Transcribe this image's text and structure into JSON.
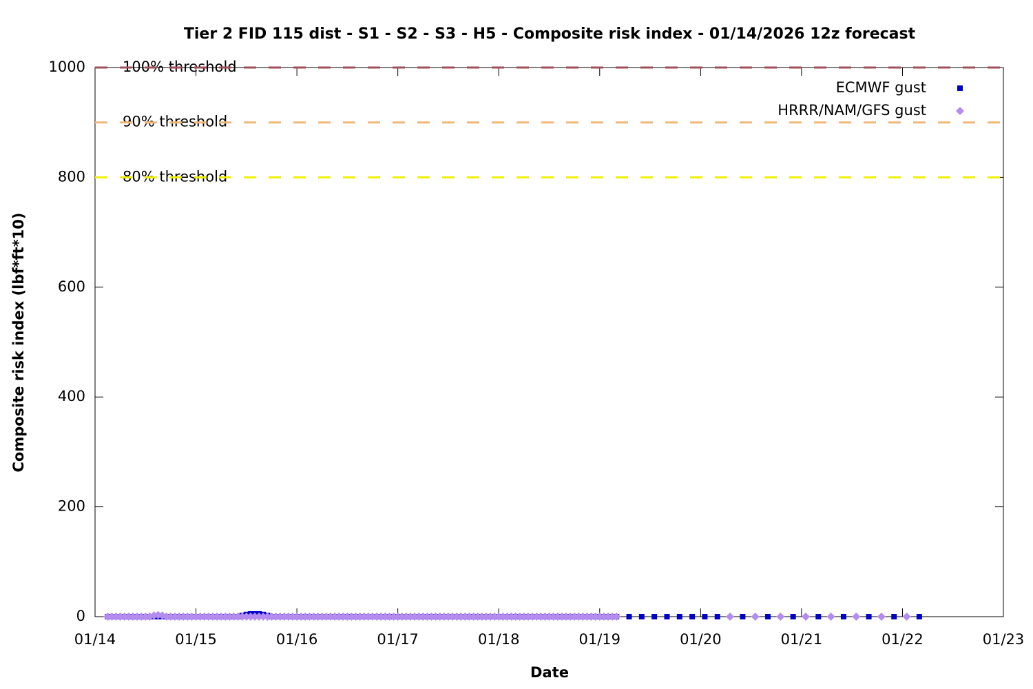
{
  "chart_data": {
    "type": "scatter",
    "title": "Tier 2 FID 115 dist - S1 - S2 - S3 - H5 - Composite risk index - 01/14/2026 12z forecast",
    "x_label": "Date",
    "y_label": "Composite risk index (lbf*ft*10)",
    "xlim": [
      0,
      216
    ],
    "xticks": [
      {
        "value": 0,
        "label": "01/14"
      },
      {
        "value": 24,
        "label": "01/15"
      },
      {
        "value": 48,
        "label": "01/16"
      },
      {
        "value": 72,
        "label": "01/17"
      },
      {
        "value": 96,
        "label": "01/18"
      },
      {
        "value": 120,
        "label": "01/19"
      },
      {
        "value": 144,
        "label": "01/20"
      },
      {
        "value": 168,
        "label": "01/21"
      },
      {
        "value": 192,
        "label": "01/22"
      },
      {
        "value": 216,
        "label": "01/23"
      }
    ],
    "ylim": [
      0,
      1000
    ],
    "yticks": [
      0,
      200,
      400,
      600,
      800,
      1000
    ],
    "legend": "top-right",
    "thresholds": [
      {
        "label": "100% threshold",
        "value": 1000,
        "color": "#a0505a"
      },
      {
        "label": "90% threshold",
        "value": 900,
        "color": "#f0b878"
      },
      {
        "label": "80% threshold",
        "value": 800,
        "color": "#f0f000"
      }
    ],
    "series": [
      {
        "name": "ECMWF gust",
        "color": "#0000c8",
        "marker": "square",
        "x": [
          3,
          4,
          5,
          6,
          7,
          8,
          9,
          10,
          11,
          12,
          13,
          14,
          15,
          16,
          17,
          18,
          19,
          20,
          21,
          22,
          23,
          24,
          25,
          26,
          27,
          28,
          29,
          30,
          31,
          32,
          33,
          34,
          35,
          36,
          37,
          38,
          39,
          40,
          41,
          42,
          43,
          44,
          45,
          46,
          47,
          48,
          49,
          50,
          51,
          52,
          53,
          54,
          55,
          56,
          57,
          58,
          59,
          60,
          61,
          62,
          63,
          64,
          65,
          66,
          67,
          68,
          69,
          70,
          71,
          72,
          73,
          74,
          75,
          76,
          77,
          78,
          79,
          80,
          81,
          82,
          83,
          84,
          85,
          86,
          87,
          88,
          89,
          90,
          91,
          92,
          93,
          94,
          95,
          96,
          97,
          98,
          99,
          100,
          101,
          102,
          103,
          104,
          105,
          106,
          107,
          108,
          109,
          110,
          111,
          112,
          113,
          114,
          115,
          116,
          117,
          118,
          119,
          120,
          121,
          122,
          123,
          124,
          127,
          130,
          133,
          136,
          139,
          142,
          145,
          148,
          154,
          160,
          166,
          172,
          178,
          184,
          190,
          196
        ],
        "values": [
          0,
          0,
          0,
          0,
          0,
          0,
          0,
          0,
          0,
          0,
          0,
          0,
          0,
          0,
          0,
          0,
          0,
          0,
          0,
          0,
          0,
          0,
          0,
          0,
          0,
          0,
          0,
          0,
          0,
          0,
          0,
          0,
          2,
          4,
          5,
          5,
          5,
          4,
          2,
          0,
          0,
          0,
          0,
          0,
          0,
          0,
          0,
          0,
          0,
          0,
          0,
          0,
          0,
          0,
          0,
          0,
          0,
          0,
          0,
          0,
          0,
          0,
          0,
          0,
          0,
          0,
          0,
          0,
          0,
          0,
          0,
          0,
          0,
          0,
          0,
          0,
          0,
          0,
          0,
          0,
          0,
          0,
          0,
          0,
          0,
          0,
          0,
          0,
          0,
          0,
          0,
          0,
          0,
          0,
          0,
          0,
          0,
          0,
          0,
          0,
          0,
          0,
          0,
          0,
          0,
          0,
          0,
          0,
          0,
          0,
          0,
          0,
          0,
          0,
          0,
          0,
          0,
          0,
          0,
          0,
          0,
          0,
          0,
          0,
          0,
          0,
          0,
          0,
          0,
          0,
          0,
          0,
          0,
          0,
          0,
          0,
          0,
          0
        ]
      },
      {
        "name": "HRRR/NAM/GFS gust",
        "color": "#b48cf0",
        "marker": "diamond",
        "x": [
          3,
          4,
          5,
          6,
          7,
          8,
          9,
          10,
          11,
          12,
          13,
          14,
          15,
          16,
          17,
          18,
          19,
          20,
          21,
          22,
          23,
          24,
          25,
          26,
          27,
          28,
          29,
          30,
          31,
          32,
          33,
          34,
          35,
          36,
          37,
          38,
          39,
          40,
          41,
          42,
          43,
          44,
          45,
          46,
          47,
          48,
          49,
          50,
          51,
          52,
          53,
          54,
          55,
          56,
          57,
          58,
          59,
          60,
          61,
          62,
          63,
          64,
          65,
          66,
          67,
          68,
          69,
          70,
          71,
          72,
          73,
          74,
          75,
          76,
          77,
          78,
          79,
          80,
          81,
          82,
          83,
          84,
          85,
          86,
          87,
          88,
          89,
          90,
          91,
          92,
          93,
          94,
          95,
          96,
          97,
          98,
          99,
          100,
          101,
          102,
          103,
          104,
          105,
          106,
          107,
          108,
          109,
          110,
          111,
          112,
          113,
          114,
          115,
          116,
          117,
          118,
          119,
          120,
          121,
          122,
          123,
          124,
          151,
          157,
          163,
          169,
          175,
          181,
          187,
          193
        ],
        "values": [
          0,
          0,
          0,
          0,
          0,
          0,
          0,
          0,
          0,
          0,
          0,
          2,
          3,
          2,
          0,
          0,
          0,
          0,
          0,
          0,
          0,
          0,
          0,
          0,
          0,
          0,
          0,
          0,
          0,
          0,
          0,
          0,
          0,
          0,
          0,
          0,
          0,
          0,
          0,
          0,
          0,
          0,
          0,
          0,
          0,
          0,
          0,
          0,
          0,
          0,
          0,
          0,
          0,
          0,
          0,
          0,
          0,
          0,
          0,
          0,
          0,
          0,
          0,
          0,
          0,
          0,
          0,
          0,
          0,
          0,
          0,
          0,
          0,
          0,
          0,
          0,
          0,
          0,
          0,
          0,
          0,
          0,
          0,
          0,
          0,
          0,
          0,
          0,
          0,
          0,
          0,
          0,
          0,
          0,
          0,
          0,
          0,
          0,
          0,
          0,
          0,
          0,
          0,
          0,
          0,
          0,
          0,
          0,
          0,
          0,
          0,
          0,
          0,
          0,
          0,
          0,
          0,
          0,
          0,
          0,
          0,
          0,
          0,
          0,
          0,
          0,
          0,
          0,
          0,
          0
        ]
      }
    ]
  }
}
